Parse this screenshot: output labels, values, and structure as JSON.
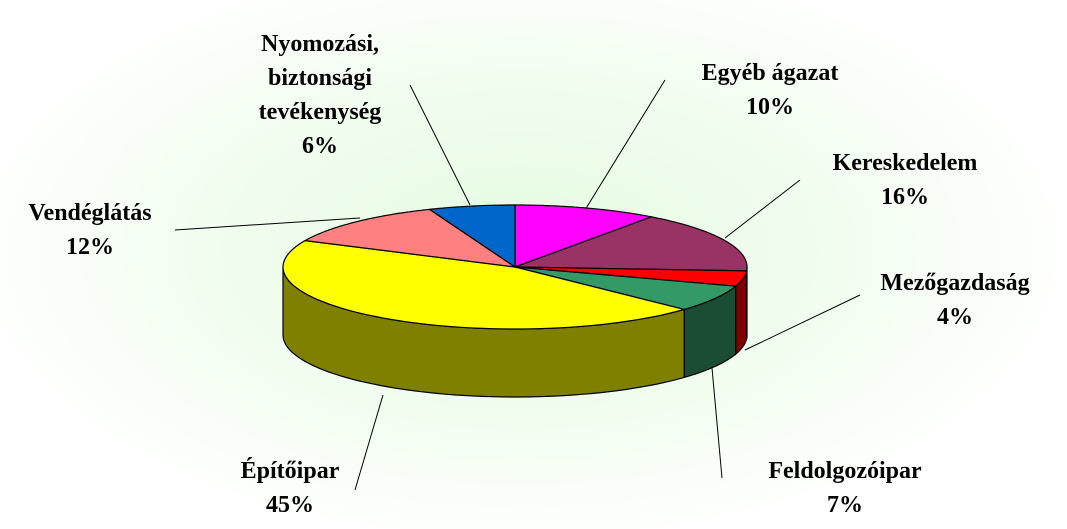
{
  "chart_data": {
    "type": "pie",
    "categories": [
      "Egyéb ágazat",
      "Kereskedelem",
      "Mezőgazdaság",
      "Feldolgozóipar",
      "Építőipar",
      "Vendéglátás",
      "Nyomozási, biztonsági tevékenység"
    ],
    "values": [
      10,
      16,
      4,
      7,
      45,
      12,
      6
    ],
    "value_labels": [
      "10%",
      "16%",
      "4%",
      "7%",
      "45%",
      "12%",
      "6%"
    ],
    "colors": [
      "#ff00ff",
      "#993366",
      "#ff0000",
      "#339966",
      "#ffff00",
      "#ff8080",
      "#0066cc"
    ]
  }
}
